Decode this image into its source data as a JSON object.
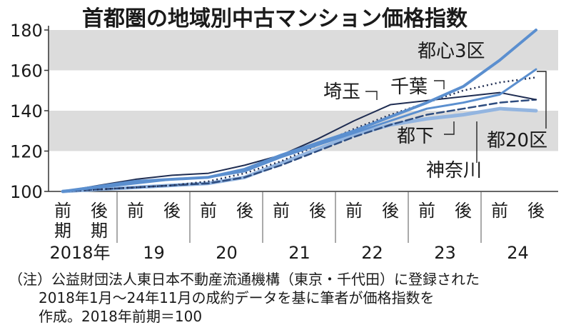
{
  "chart_data": {
    "type": "line",
    "title": "首都圏の地域別中古マンション価格指数",
    "ylim": [
      100,
      180
    ],
    "yticks": [
      "100",
      "120",
      "140",
      "160",
      "180"
    ],
    "categories": [
      "2018前",
      "2018後",
      "2019前",
      "2019後",
      "2020前",
      "2020後",
      "2021前",
      "2021後",
      "2022前",
      "2022後",
      "2023前",
      "2023後",
      "2024前",
      "2024後"
    ],
    "half_labels": [
      "前",
      "後",
      "前",
      "後",
      "前",
      "後",
      "前",
      "後",
      "前",
      "後",
      "前",
      "後",
      "前",
      "後"
    ],
    "half_suffix": [
      "期",
      "期"
    ],
    "year_labels": [
      "2018年",
      "19",
      "20",
      "21",
      "22",
      "23",
      "24"
    ],
    "grid_bands": [
      [
        120,
        140
      ],
      [
        160,
        180
      ]
    ],
    "series": [
      {
        "name": "都心3区",
        "color": "#5b8fcf",
        "style": "solid",
        "width": 4,
        "values": [
          100,
          102.5,
          105,
          106,
          107,
          111,
          118,
          124,
          130,
          137,
          144,
          152,
          165,
          180
        ]
      },
      {
        "name": "都20区",
        "color": "#5b8fcf",
        "style": "solid",
        "width": 3,
        "values": [
          100,
          102,
          104,
          106,
          107,
          110,
          117,
          123,
          129,
          135,
          141,
          144,
          148,
          160.5
        ]
      },
      {
        "name": "千葉",
        "color": "#1f2d52",
        "style": "dotted",
        "width": 2.5,
        "values": [
          100,
          101,
          102,
          103,
          105,
          109,
          115,
          123,
          131,
          138,
          144,
          150,
          154,
          156.5
        ]
      },
      {
        "name": "埼玉",
        "color": "#1f2d52",
        "style": "solid",
        "width": 2,
        "values": [
          100,
          103,
          106,
          108,
          109,
          113,
          118,
          126,
          135,
          143,
          145,
          147,
          149,
          145.5
        ]
      },
      {
        "name": "神奈川",
        "color": "#2e4d80",
        "style": "dashed",
        "width": 2.5,
        "values": [
          100,
          101,
          102,
          103,
          104,
          107,
          113,
          120,
          127,
          133,
          138,
          141,
          144,
          145.5
        ]
      },
      {
        "name": "都下",
        "color": "#93b5e0",
        "style": "solid",
        "width": 5,
        "values": [
          100,
          101,
          102,
          103,
          104,
          107,
          114,
          121,
          128,
          133,
          136,
          138,
          141,
          140
        ]
      }
    ],
    "note": [
      "（注）公益財団法人東日本不動産流通機構（東京・千代田）に登録された",
      "2018年1月～24年11月の成約データを基に筆者が価格指数を",
      "作成。2018年前期＝100"
    ]
  }
}
